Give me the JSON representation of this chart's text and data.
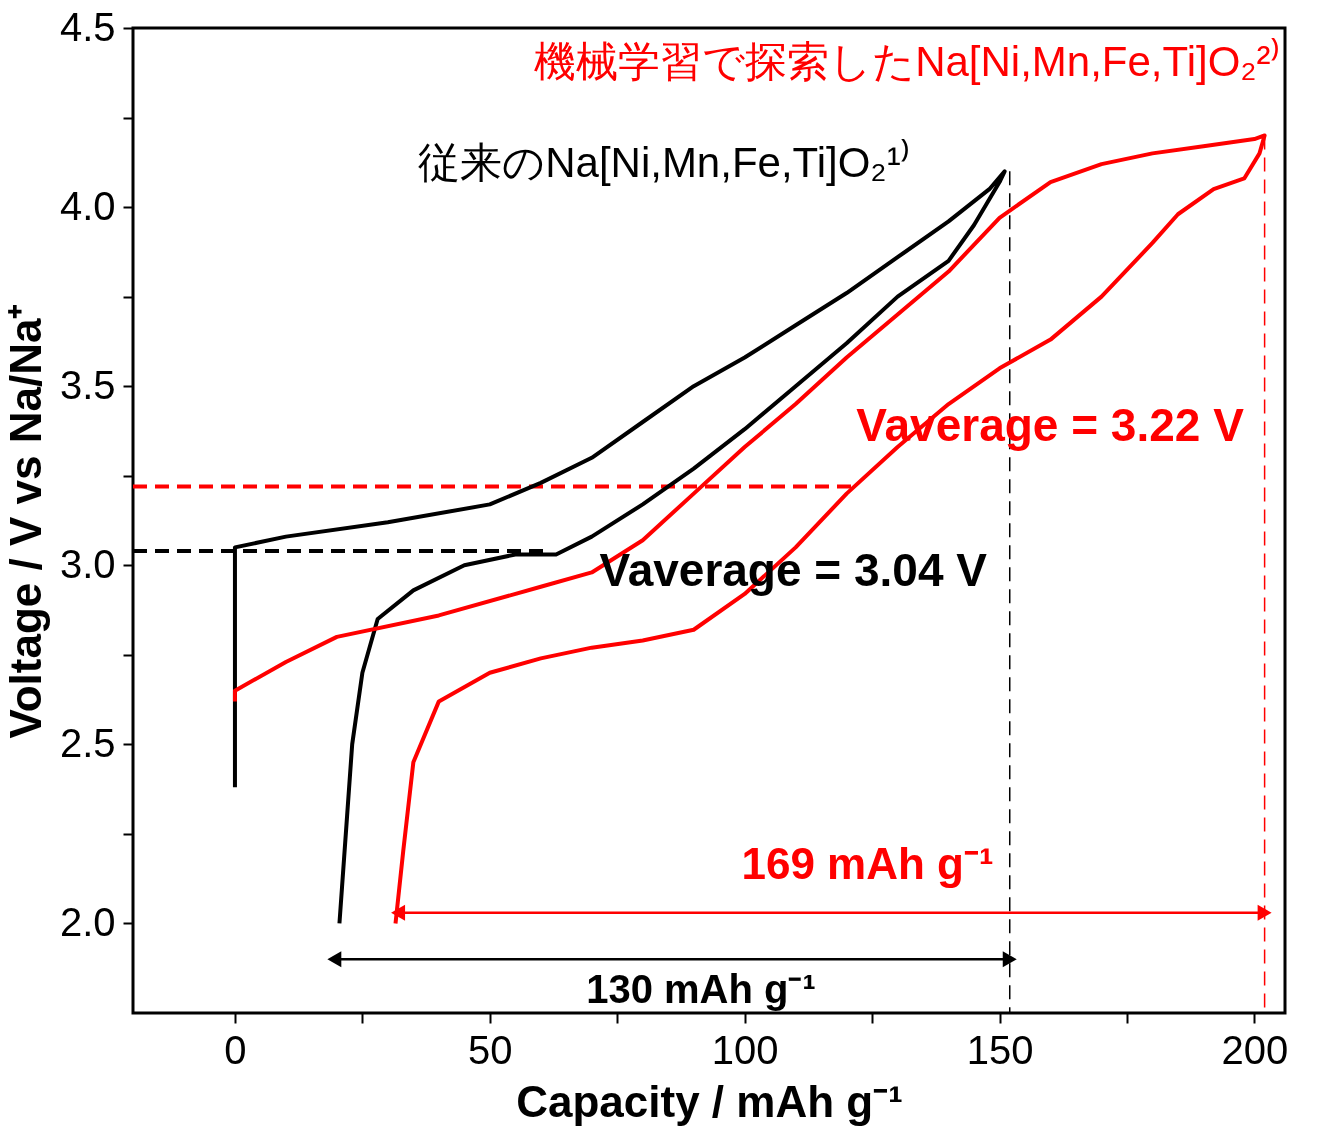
{
  "chart_data": {
    "type": "line",
    "xlabel": "Capacity / mAh g⁻¹",
    "ylabel": "Voltage / V vs Na/Na⁺",
    "xlim": [
      -20,
      206
    ],
    "ylim": [
      1.75,
      4.5
    ],
    "xticks": [
      0,
      {
        "value": 25,
        "label": null
      },
      50,
      {
        "value": 75,
        "label": null
      },
      100,
      {
        "value": 125,
        "label": null
      },
      150,
      {
        "value": 175,
        "label": null
      },
      200
    ],
    "yticks": [
      {
        "value": 2,
        "label": "2.0"
      },
      {
        "value": 2.25,
        "label": null
      },
      2.5,
      {
        "value": 2.75,
        "label": null
      },
      {
        "value": 3,
        "label": "3.0"
      },
      {
        "value": 3.25,
        "label": null
      },
      3.5,
      {
        "value": 3.75,
        "label": null
      },
      {
        "value": 4,
        "label": "4.0"
      },
      {
        "value": 4.25,
        "label": null
      },
      4.5
    ],
    "grid": false,
    "series": [
      {
        "name": "機械学習で探索したNa[Ni,Mn,Fe,Ti]O₂²⁾",
        "color": "#ff0000",
        "x": [
          0,
          0,
          10,
          20,
          40,
          60,
          70,
          80,
          90,
          100,
          110,
          120,
          130,
          140,
          150,
          160,
          170,
          180,
          190,
          200,
          202,
          201,
          198,
          192,
          185,
          180,
          170,
          160,
          150,
          140,
          130,
          120,
          110,
          100,
          90,
          80,
          70,
          60,
          50,
          40,
          35,
          33,
          31.5
        ],
        "values": [
          2.62,
          2.65,
          2.73,
          2.8,
          2.86,
          2.94,
          2.98,
          3.07,
          3.2,
          3.33,
          3.45,
          3.58,
          3.7,
          3.82,
          3.97,
          4.07,
          4.12,
          4.15,
          4.17,
          4.19,
          4.2,
          4.15,
          4.08,
          4.05,
          3.98,
          3.9,
          3.75,
          3.63,
          3.55,
          3.45,
          3.33,
          3.2,
          3.05,
          2.92,
          2.82,
          2.79,
          2.77,
          2.74,
          2.7,
          2.62,
          2.45,
          2.2,
          2.0
        ]
      },
      {
        "name": "従来のNa[Ni,Mn,Fe,Ti]O₂¹⁾",
        "color": "#000000",
        "x": [
          0,
          0,
          10,
          30,
          50,
          60,
          70,
          80,
          90,
          100,
          110,
          120,
          130,
          140,
          148,
          151,
          150,
          145,
          140,
          130,
          120,
          110,
          100,
          90,
          80,
          70,
          63,
          55,
          45,
          35,
          28,
          25,
          23,
          22,
          21,
          20.5
        ],
        "values": [
          2.38,
          3.05,
          3.08,
          3.12,
          3.17,
          3.23,
          3.3,
          3.4,
          3.5,
          3.58,
          3.67,
          3.76,
          3.86,
          3.96,
          4.05,
          4.1,
          4.07,
          3.95,
          3.85,
          3.75,
          3.62,
          3.5,
          3.38,
          3.27,
          3.17,
          3.08,
          3.03,
          3.03,
          3.0,
          2.93,
          2.85,
          2.7,
          2.5,
          2.3,
          2.1,
          2.0
        ]
      },
      {
        "name": "Vaverage = 3.22 V",
        "type": "line",
        "color": "#ff0000",
        "line_style": "dashed",
        "x": [
          -20,
          122
        ],
        "values": [
          3.22,
          3.22
        ]
      },
      {
        "name": "Vaverage = 3.04 V",
        "type": "line",
        "color": "#000000",
        "line_style": "dashed",
        "x": [
          -20,
          62
        ],
        "values": [
          3.04,
          3.04
        ]
      },
      {
        "name": "169 mAh g⁻¹",
        "type": "line",
        "color": "#ff0000",
        "marker": "triangle",
        "x": [
          32,
          202
        ],
        "values": [
          2.03,
          2.03
        ]
      },
      {
        "name": "130 mAh g⁻¹",
        "type": "line",
        "color": "#000000",
        "marker": "triangle",
        "x": [
          19.5,
          152
        ],
        "values": [
          1.9,
          1.9
        ]
      },
      {
        "type": "line",
        "color": "#000000",
        "line_style": "dashed",
        "x": [
          152,
          152
        ],
        "values": [
          4.1,
          1.75
        ]
      },
      {
        "type": "line",
        "color": "#ff0000",
        "line_style": "dashed",
        "x": [
          202,
          202
        ],
        "values": [
          4.2,
          1.75
        ]
      }
    ]
  }
}
